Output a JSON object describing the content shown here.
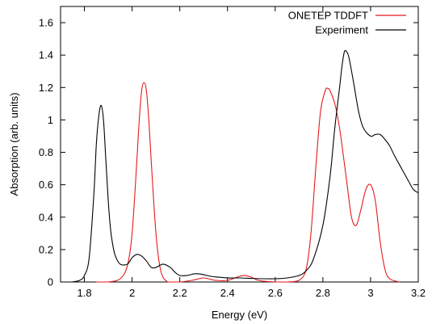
{
  "chart_data": {
    "type": "line",
    "title": "",
    "xlabel": "Energy (eV)",
    "ylabel": "Absorption (arb. units)",
    "xlim": [
      1.7,
      3.2
    ],
    "ylim": [
      0,
      1.7
    ],
    "xticks": [
      1.8,
      2,
      2.2,
      2.4,
      2.6,
      2.8,
      3,
      3.2
    ],
    "xtick_labels": [
      "1.8",
      "2",
      "2.2",
      "2.4",
      "2.6",
      "2.8",
      "3",
      "3.2"
    ],
    "yticks": [
      0,
      0.2,
      0.4,
      0.6,
      0.8,
      1,
      1.2,
      1.4,
      1.6
    ],
    "ytick_labels": [
      "0",
      "0.2",
      "0.4",
      "0.6",
      "0.8",
      "1",
      "1.2",
      "1.4",
      "1.6"
    ],
    "grid": false,
    "legend_position": "top-right",
    "series": [
      {
        "name": "ONETEP TDDFT",
        "color": "#e41a1c",
        "x": [
          1.85,
          1.9,
          1.95,
          1.98,
          2.0,
          2.02,
          2.03,
          2.04,
          2.05,
          2.06,
          2.07,
          2.08,
          2.1,
          2.12,
          2.15,
          2.2,
          2.25,
          2.28,
          2.3,
          2.32,
          2.35,
          2.4,
          2.44,
          2.47,
          2.5,
          2.53,
          2.6,
          2.65,
          2.7,
          2.73,
          2.75,
          2.77,
          2.79,
          2.81,
          2.82,
          2.83,
          2.85,
          2.87,
          2.9,
          2.92,
          2.94,
          2.96,
          2.98,
          3.0,
          3.02,
          3.04,
          3.06,
          3.08,
          3.12
        ],
        "y": [
          0.0,
          0.0,
          0.02,
          0.1,
          0.3,
          0.75,
          1.0,
          1.18,
          1.23,
          1.18,
          1.0,
          0.75,
          0.3,
          0.07,
          0.0,
          0.0,
          0.01,
          0.02,
          0.025,
          0.02,
          0.01,
          0.01,
          0.03,
          0.04,
          0.03,
          0.01,
          0.0,
          0.0,
          0.01,
          0.08,
          0.3,
          0.7,
          1.05,
          1.18,
          1.195,
          1.18,
          1.1,
          0.95,
          0.62,
          0.4,
          0.35,
          0.45,
          0.57,
          0.6,
          0.5,
          0.25,
          0.08,
          0.02,
          0.0
        ]
      },
      {
        "name": "Experiment",
        "color": "#000000",
        "x": [
          1.75,
          1.78,
          1.8,
          1.82,
          1.84,
          1.85,
          1.86,
          1.87,
          1.88,
          1.89,
          1.9,
          1.91,
          1.92,
          1.93,
          1.95,
          1.98,
          2.0,
          2.02,
          2.04,
          2.06,
          2.08,
          2.1,
          2.13,
          2.16,
          2.18,
          2.2,
          2.23,
          2.26,
          2.28,
          2.3,
          2.33,
          2.36,
          2.4,
          2.45,
          2.5,
          2.55,
          2.6,
          2.65,
          2.7,
          2.73,
          2.76,
          2.8,
          2.83,
          2.85,
          2.87,
          2.88,
          2.89,
          2.9,
          2.91,
          2.93,
          2.95,
          2.97,
          3.0,
          3.02,
          3.04,
          3.06,
          3.08,
          3.1,
          3.13,
          3.16,
          3.18,
          3.2
        ],
        "y": [
          0.0,
          0.01,
          0.04,
          0.15,
          0.55,
          0.85,
          1.02,
          1.09,
          1.0,
          0.75,
          0.5,
          0.32,
          0.22,
          0.16,
          0.11,
          0.11,
          0.15,
          0.17,
          0.16,
          0.13,
          0.09,
          0.09,
          0.11,
          0.09,
          0.06,
          0.04,
          0.04,
          0.05,
          0.05,
          0.045,
          0.035,
          0.03,
          0.025,
          0.025,
          0.022,
          0.02,
          0.02,
          0.025,
          0.04,
          0.07,
          0.14,
          0.35,
          0.65,
          0.95,
          1.2,
          1.33,
          1.42,
          1.42,
          1.38,
          1.22,
          1.05,
          0.95,
          0.9,
          0.91,
          0.91,
          0.88,
          0.84,
          0.78,
          0.7,
          0.62,
          0.57,
          0.55
        ]
      }
    ]
  }
}
